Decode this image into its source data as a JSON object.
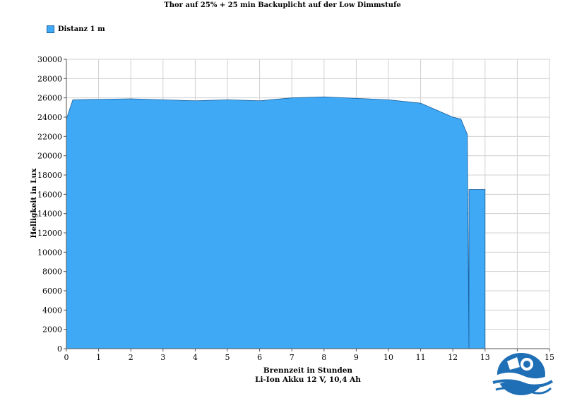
{
  "chart_data": {
    "type": "area",
    "title": "Thor auf 25% + 25 min Backuplicht auf der Low Dimmstufe",
    "xlabel": "Brennzeit in Stunden",
    "xlabel2": "Li-Ion Akku 12 V, 10,4 Ah",
    "ylabel": "Helligkeit in Lux",
    "xlim": [
      0,
      15
    ],
    "ylim": [
      0,
      30000
    ],
    "xticks": [
      0,
      1,
      2,
      3,
      4,
      5,
      6,
      7,
      8,
      9,
      10,
      11,
      12,
      13,
      14,
      15
    ],
    "yticks": [
      0,
      2000,
      4000,
      6000,
      8000,
      10000,
      12000,
      14000,
      16000,
      18000,
      20000,
      22000,
      24000,
      26000,
      28000,
      30000
    ],
    "grid": true,
    "legend_position": "top-left",
    "series": [
      {
        "name": "Distanz 1 m",
        "color": "#3fa9f5",
        "points": [
          [
            0,
            23800
          ],
          [
            0.2,
            25800
          ],
          [
            1,
            25850
          ],
          [
            2,
            25900
          ],
          [
            3,
            25800
          ],
          [
            4,
            25700
          ],
          [
            5,
            25800
          ],
          [
            6,
            25700
          ],
          [
            7,
            26000
          ],
          [
            8,
            26100
          ],
          [
            9,
            25950
          ],
          [
            10,
            25800
          ],
          [
            11,
            25450
          ],
          [
            12,
            24000
          ],
          [
            12.25,
            23800
          ],
          [
            12.45,
            22200
          ],
          [
            12.5,
            0
          ],
          [
            12.5,
            16500
          ],
          [
            13,
            16500
          ],
          [
            13,
            0
          ]
        ]
      }
    ]
  }
}
